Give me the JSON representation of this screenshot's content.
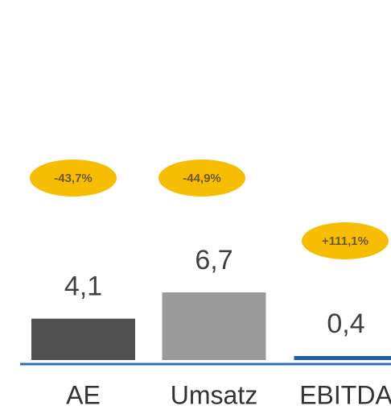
{
  "chart_data": {
    "type": "bar",
    "categories": [
      "AE",
      "Umsatz",
      "EBITDA"
    ],
    "values": [
      4.1,
      6.7,
      0.4
    ],
    "value_labels": [
      "4,1",
      "6,7",
      "0,4"
    ],
    "colors": [
      "#505050",
      "#9a9a9a",
      "#1f5faa"
    ],
    "annotations": [
      "-43,7%",
      "-44,9%",
      "+111,1%"
    ],
    "baseline_color": "#2f6db5",
    "annotation_color": "#f7bd00"
  }
}
